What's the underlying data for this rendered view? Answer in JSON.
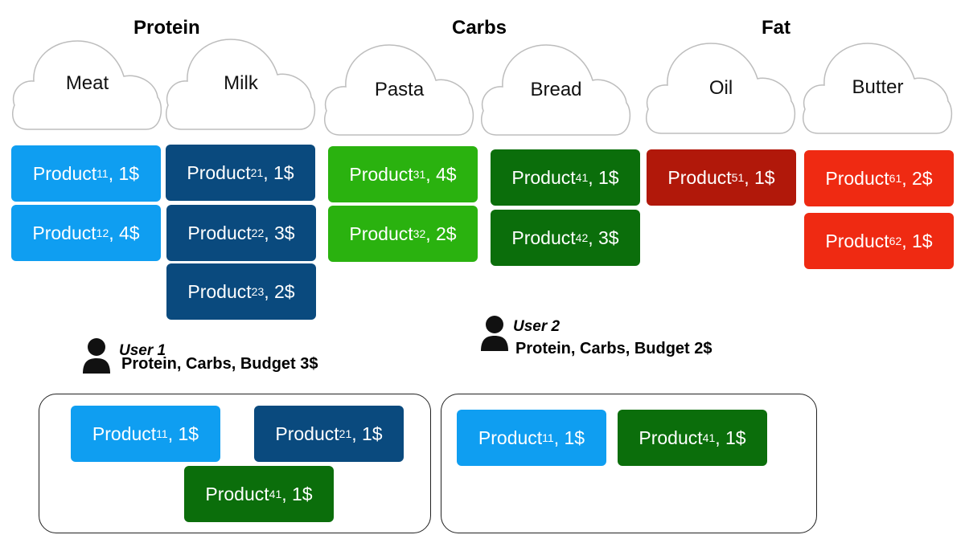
{
  "groups": [
    {
      "title": "Protein"
    },
    {
      "title": "Carbs"
    },
    {
      "title": "Fat"
    }
  ],
  "categories": [
    {
      "label": "Meat"
    },
    {
      "label": "Milk"
    },
    {
      "label": "Pasta"
    },
    {
      "label": "Bread"
    },
    {
      "label": "Oil"
    },
    {
      "label": "Butter"
    }
  ],
  "colors": {
    "meat": "#0f9ef1",
    "milk": "#0a4a7e",
    "pasta": "#2ab20f",
    "bread": "#0b6e0b",
    "oil": "#b1180a",
    "butter": "#ef2a12"
  },
  "products": [
    {
      "name": "Product",
      "sub": "11",
      "price": ", 1$"
    },
    {
      "name": "Product",
      "sub": "12",
      "price": ", 4$"
    },
    {
      "name": "Product",
      "sub": "21",
      "price": ", 1$"
    },
    {
      "name": "Product",
      "sub": "22",
      "price": ", 3$"
    },
    {
      "name": "Product",
      "sub": "23",
      "price": ", 2$"
    },
    {
      "name": "Product",
      "sub": "31",
      "price": ", 4$"
    },
    {
      "name": "Product",
      "sub": "32",
      "price": ", 2$"
    },
    {
      "name": "Product",
      "sub": "41",
      "price": ", 1$"
    },
    {
      "name": "Product",
      "sub": "42",
      "price": ", 3$"
    },
    {
      "name": "Product",
      "sub": "51",
      "price": ", 1$"
    },
    {
      "name": "Product",
      "sub": "61",
      "price": ", 2$"
    },
    {
      "name": "Product",
      "sub": "62",
      "price": ", 1$"
    }
  ],
  "users": [
    {
      "name": "User 1",
      "request": "Protein, Carbs, Budget 3$",
      "cart": [
        {
          "name": "Product",
          "sub": "11",
          "price": ", 1$"
        },
        {
          "name": "Product",
          "sub": "21",
          "price": ", 1$"
        },
        {
          "name": "Product",
          "sub": "41",
          "price": ", 1$"
        }
      ]
    },
    {
      "name": "User 2",
      "request": "Protein, Carbs, Budget 2$",
      "cart": [
        {
          "name": "Product",
          "sub": "11",
          "price": ", 1$"
        },
        {
          "name": "Product",
          "sub": "41",
          "price": ", 1$"
        }
      ]
    }
  ]
}
